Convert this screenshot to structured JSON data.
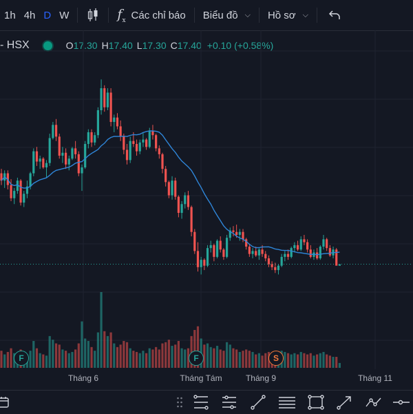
{
  "toolbar": {
    "intervals": [
      "1h",
      "4h",
      "D",
      "W"
    ],
    "active_interval": "D",
    "indicators_label": "Các chỉ báo",
    "chart_type_label": "Biểu đồ",
    "profile_label": "Hồ sơ"
  },
  "legend": {
    "symbol": "- HSX",
    "open_key": "O",
    "open": "17.30",
    "high_key": "H",
    "high": "17.40",
    "low_key": "L",
    "low": "17.30",
    "close_key": "C",
    "close": "17.40",
    "change": "+0.10 (+0.58%)"
  },
  "xaxis": {
    "labels": [
      "Tháng 6",
      "Tháng Tám",
      "Tháng 9",
      "Tháng 11"
    ]
  },
  "events": [
    "F",
    "F",
    "S"
  ],
  "colors": {
    "up": "#26a69a",
    "down": "#ef5350",
    "ma": "#2f86d9",
    "bg": "#141823",
    "grid": "#1f2330",
    "event_f": "#26a69a",
    "event_s": "#f5793b"
  },
  "icons": [
    "calendar-icon",
    "drag-handle-icon",
    "fib-tool-icon",
    "parallel-channel-icon",
    "trend-line-icon",
    "horizontal-lines-icon",
    "rectangle-icon",
    "arrow-tool-icon",
    "path-tool-icon",
    "horizontal-ray-icon"
  ],
  "chart_data": {
    "type": "candlestick",
    "ma_period": 20,
    "last_price": 17.4,
    "ohlcv": [
      [
        23.6,
        23.9,
        22.8,
        23.1,
        1.4
      ],
      [
        23.1,
        23.8,
        22.6,
        23.6,
        1.1
      ],
      [
        23.6,
        23.8,
        22.5,
        22.8,
        1.3
      ],
      [
        22.8,
        23.2,
        21.7,
        21.9,
        1.6
      ],
      [
        21.9,
        22.6,
        21.5,
        22.4,
        1.2
      ],
      [
        22.4,
        23.3,
        22.2,
        23.1,
        1.0
      ],
      [
        23.1,
        23.2,
        21.4,
        21.6,
        1.5
      ],
      [
        21.6,
        22.4,
        21.3,
        22.2,
        1.3
      ],
      [
        22.2,
        23.1,
        21.9,
        22.7,
        1.1
      ],
      [
        22.7,
        23.7,
        22.5,
        23.6,
        1.4
      ],
      [
        23.6,
        25.3,
        23.4,
        25.1,
        2.2
      ],
      [
        25.1,
        25.4,
        24.1,
        24.4,
        1.6
      ],
      [
        24.4,
        24.8,
        23.9,
        24.6,
        1.2
      ],
      [
        24.6,
        24.7,
        23.9,
        24.0,
        1.1
      ],
      [
        24.0,
        24.5,
        23.3,
        24.3,
        1.0
      ],
      [
        24.3,
        26.3,
        24.1,
        26.0,
        2.6
      ],
      [
        26.0,
        27.1,
        25.9,
        26.9,
        2.3
      ],
      [
        26.9,
        27.3,
        25.8,
        26.1,
        2.0
      ],
      [
        26.1,
        26.3,
        24.6,
        24.8,
        1.9
      ],
      [
        24.8,
        25.4,
        24.3,
        25.0,
        1.5
      ],
      [
        25.0,
        25.3,
        23.9,
        24.2,
        1.4
      ],
      [
        24.2,
        24.8,
        23.8,
        24.6,
        1.2
      ],
      [
        24.6,
        25.4,
        24.5,
        25.3,
        1.3
      ],
      [
        25.3,
        25.8,
        24.6,
        24.9,
        1.5
      ],
      [
        24.9,
        25.1,
        23.4,
        23.6,
        2.0
      ],
      [
        23.6,
        24.2,
        22.4,
        24.0,
        3.8
      ],
      [
        24.0,
        25.8,
        23.9,
        25.6,
        2.4
      ],
      [
        25.6,
        26.6,
        25.3,
        26.4,
        2.2
      ],
      [
        26.4,
        26.6,
        25.4,
        25.7,
        1.7
      ],
      [
        25.7,
        26.4,
        25.5,
        26.2,
        1.4
      ],
      [
        26.2,
        28.1,
        26.0,
        27.9,
        2.9
      ],
      [
        27.9,
        30.0,
        27.6,
        29.4,
        6.2
      ],
      [
        29.4,
        29.6,
        27.8,
        28.1,
        3.0
      ],
      [
        28.1,
        29.4,
        27.9,
        29.1,
        2.6
      ],
      [
        29.1,
        29.4,
        26.8,
        27.1,
        2.9
      ],
      [
        27.1,
        27.6,
        26.4,
        27.4,
        2.0
      ],
      [
        27.4,
        27.7,
        26.6,
        26.8,
        1.7
      ],
      [
        26.8,
        27.2,
        25.8,
        26.1,
        1.9
      ],
      [
        26.1,
        26.3,
        24.9,
        25.2,
        2.2
      ],
      [
        25.2,
        25.6,
        24.2,
        24.5,
        2.1
      ],
      [
        24.5,
        26.1,
        24.3,
        25.8,
        1.6
      ],
      [
        25.8,
        26.4,
        25.4,
        25.6,
        1.4
      ],
      [
        25.6,
        25.9,
        24.8,
        25.1,
        1.3
      ],
      [
        25.1,
        25.9,
        24.9,
        25.7,
        1.2
      ],
      [
        25.7,
        26.4,
        25.4,
        25.9,
        1.4
      ],
      [
        25.9,
        26.0,
        25.2,
        25.4,
        1.2
      ],
      [
        25.4,
        26.7,
        25.3,
        26.5,
        1.6
      ],
      [
        26.5,
        26.9,
        25.9,
        26.2,
        1.5
      ],
      [
        26.2,
        26.3,
        25.1,
        25.3,
        1.7
      ],
      [
        25.3,
        25.5,
        24.6,
        24.9,
        1.5
      ],
      [
        24.9,
        25.0,
        23.6,
        23.9,
        2.0
      ],
      [
        23.9,
        24.1,
        22.7,
        23.0,
        2.1
      ],
      [
        23.0,
        23.1,
        21.9,
        22.1,
        2.3
      ],
      [
        22.1,
        23.4,
        21.8,
        23.1,
        1.8
      ],
      [
        23.1,
        23.3,
        21.8,
        22.0,
        1.9
      ],
      [
        22.0,
        22.1,
        20.6,
        20.9,
        2.2
      ],
      [
        20.9,
        21.7,
        20.5,
        21.5,
        1.6
      ],
      [
        21.5,
        22.3,
        21.2,
        22.1,
        1.5
      ],
      [
        22.1,
        22.4,
        21.1,
        21.3,
        1.6
      ],
      [
        21.3,
        21.4,
        19.3,
        19.6,
        2.6
      ],
      [
        19.6,
        19.8,
        18.1,
        18.3,
        3.1
      ],
      [
        18.3,
        18.9,
        16.9,
        17.2,
        3.4
      ],
      [
        17.2,
        17.9,
        16.7,
        17.7,
        2.4
      ],
      [
        17.7,
        17.8,
        17.0,
        17.3,
        1.9
      ],
      [
        17.3,
        18.7,
        17.2,
        18.5,
        2.0
      ],
      [
        18.5,
        19.0,
        18.2,
        18.7,
        1.7
      ],
      [
        18.7,
        18.8,
        17.6,
        17.9,
        1.6
      ],
      [
        17.9,
        19.1,
        17.8,
        19.0,
        1.8
      ],
      [
        19.0,
        19.3,
        18.2,
        18.4,
        1.5
      ],
      [
        18.4,
        18.5,
        17.7,
        17.9,
        1.4
      ],
      [
        17.9,
        19.4,
        17.8,
        19.2,
        2.1
      ],
      [
        19.2,
        19.9,
        19.0,
        19.7,
        1.9
      ],
      [
        19.7,
        20.0,
        19.3,
        19.6,
        1.6
      ],
      [
        19.6,
        20.1,
        19.2,
        19.4,
        1.5
      ],
      [
        19.4,
        19.8,
        19.0,
        19.6,
        1.3
      ],
      [
        19.6,
        19.8,
        18.9,
        19.1,
        1.4
      ],
      [
        19.1,
        19.2,
        18.4,
        18.6,
        1.5
      ],
      [
        18.6,
        18.8,
        17.9,
        18.1,
        1.4
      ],
      [
        18.1,
        18.5,
        17.8,
        18.3,
        1.3
      ],
      [
        18.3,
        18.6,
        17.9,
        18.0,
        1.1
      ],
      [
        18.0,
        18.5,
        17.7,
        18.4,
        1.2
      ],
      [
        18.4,
        18.7,
        17.9,
        18.1,
        1.0
      ],
      [
        18.1,
        18.3,
        17.6,
        17.8,
        1.2
      ],
      [
        17.8,
        18.0,
        17.2,
        17.4,
        1.3
      ],
      [
        17.4,
        17.6,
        17.0,
        17.2,
        1.2
      ],
      [
        17.2,
        17.5,
        16.8,
        17.0,
        1.3
      ],
      [
        17.0,
        17.4,
        16.7,
        17.3,
        1.1
      ],
      [
        17.3,
        18.1,
        17.2,
        17.9,
        1.4
      ],
      [
        17.9,
        18.3,
        17.6,
        18.1,
        1.3
      ],
      [
        18.1,
        18.4,
        17.7,
        17.9,
        1.2
      ],
      [
        17.9,
        18.6,
        17.8,
        18.5,
        1.1
      ],
      [
        18.5,
        18.9,
        18.2,
        18.7,
        1.2
      ],
      [
        18.7,
        19.0,
        18.3,
        18.4,
        1.1
      ],
      [
        18.4,
        19.3,
        18.3,
        19.1,
        1.3
      ],
      [
        19.1,
        19.4,
        18.7,
        18.9,
        1.2
      ],
      [
        18.9,
        19.1,
        18.2,
        18.4,
        1.1
      ],
      [
        18.4,
        18.7,
        17.8,
        17.9,
        1.2
      ],
      [
        17.9,
        18.4,
        17.7,
        18.2,
        1.0
      ],
      [
        18.2,
        18.5,
        17.7,
        17.8,
        1.1
      ],
      [
        17.8,
        18.7,
        17.7,
        18.6,
        1.2
      ],
      [
        18.6,
        19.4,
        18.4,
        19.1,
        1.3
      ],
      [
        19.1,
        19.2,
        18.3,
        18.5,
        1.1
      ],
      [
        18.5,
        18.7,
        17.9,
        18.0,
        1.0
      ],
      [
        18.0,
        18.6,
        17.8,
        18.4,
        0.9
      ],
      [
        18.4,
        18.5,
        17.9,
        17.3,
        0.9
      ],
      [
        17.3,
        17.4,
        17.3,
        17.4,
        0.4
      ]
    ]
  }
}
